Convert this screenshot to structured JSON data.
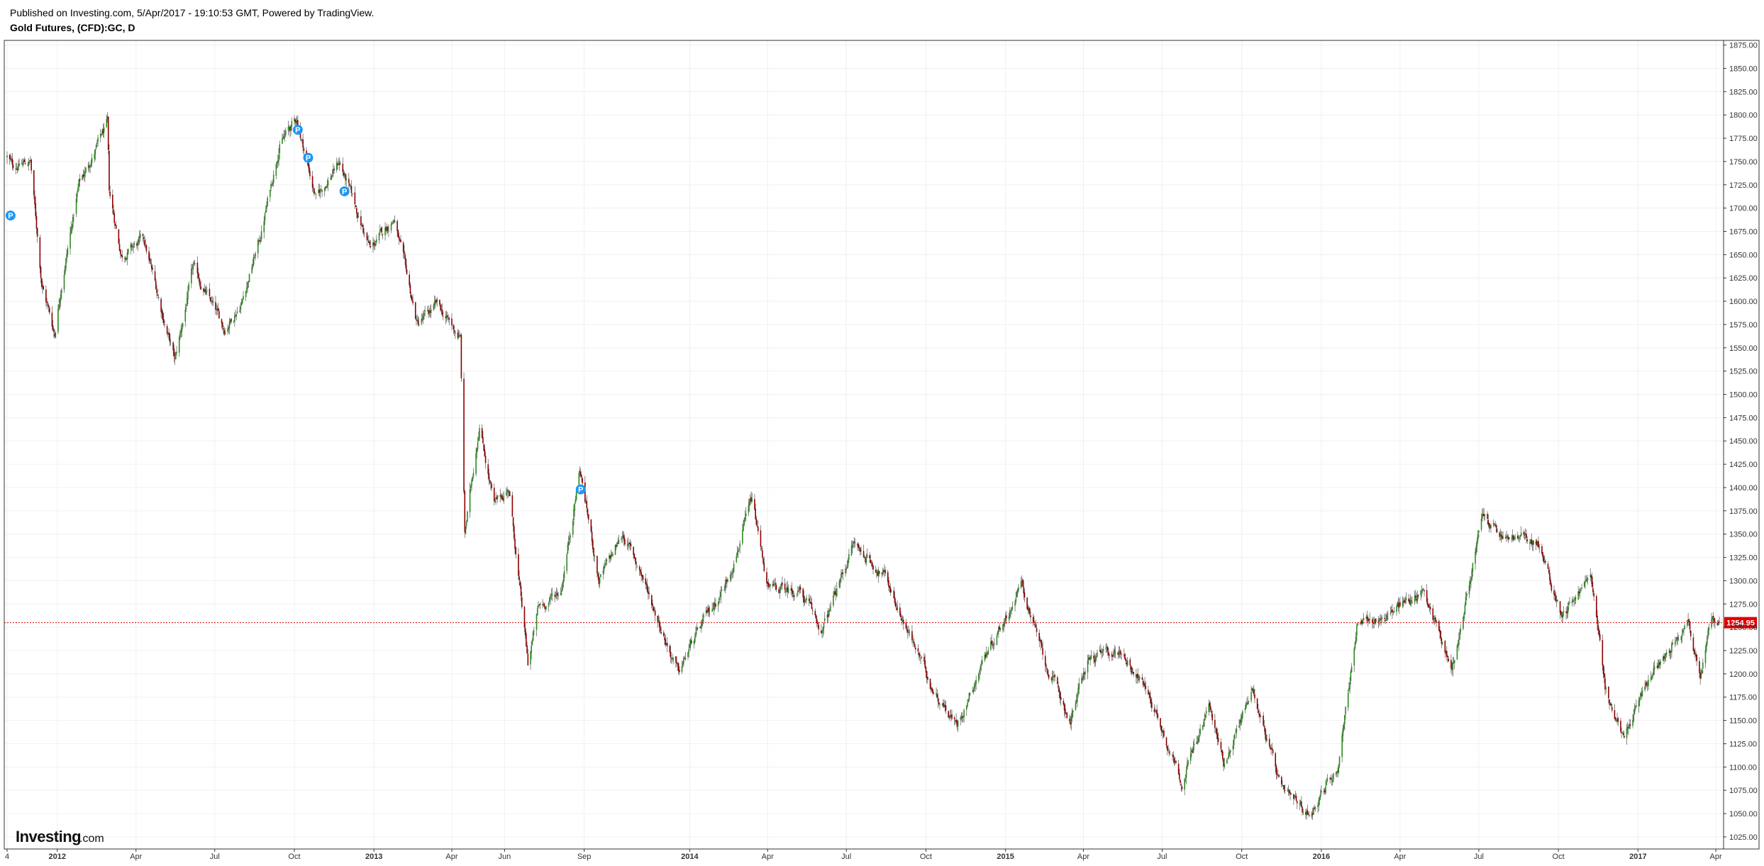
{
  "header": {
    "published_line": "Published on Investing.com, 5/Apr/2017 - 19:10:53 GMT, Powered by TradingView.",
    "symbol_title": "Gold Futures, (CFD):GC, D"
  },
  "watermark": {
    "brand_main": "Investing",
    "brand_suffix": ".com"
  },
  "colors": {
    "up": "#2b8a1e",
    "down": "#8b0000",
    "wick": "#555555",
    "grid": "#f0f0f0",
    "last_price_line": "#e00000",
    "last_price_bg": "#e00000",
    "publish_marker": "#2196f3",
    "axis": "#333333"
  },
  "chart_data": {
    "type": "candlestick",
    "title": "Gold Futures, (CFD):GC, D",
    "interval": "D",
    "xlabel": "",
    "ylabel": "",
    "ylim": [
      1012,
      1880
    ],
    "y_ticks": [
      "1025.00",
      "1050.00",
      "1075.00",
      "1100.00",
      "1125.00",
      "1150.00",
      "1175.00",
      "1200.00",
      "1225.00",
      "1250.00",
      "1275.00",
      "1300.00",
      "1325.00",
      "1350.00",
      "1375.00",
      "1400.00",
      "1425.00",
      "1450.00",
      "1475.00",
      "1500.00",
      "1525.00",
      "1550.00",
      "1575.00",
      "1600.00",
      "1625.00",
      "1650.00",
      "1675.00",
      "1700.00",
      "1725.00",
      "1750.00",
      "1775.00",
      "1800.00",
      "1825.00",
      "1850.00",
      "1875.00"
    ],
    "x_range": [
      "2011-11-04",
      "2017-04-05"
    ],
    "x_ticks": [
      {
        "label": "4",
        "date": "2011-11-04",
        "bold": false
      },
      {
        "label": "2012",
        "date": "2012-01-01",
        "bold": true
      },
      {
        "label": "Apr",
        "date": "2012-04-01",
        "bold": false
      },
      {
        "label": "Jul",
        "date": "2012-07-01",
        "bold": false
      },
      {
        "label": "Oct",
        "date": "2012-10-01",
        "bold": false
      },
      {
        "label": "2013",
        "date": "2013-01-01",
        "bold": true
      },
      {
        "label": "Apr",
        "date": "2013-04-01",
        "bold": false
      },
      {
        "label": "Jun",
        "date": "2013-06-01",
        "bold": false
      },
      {
        "label": "Sep",
        "date": "2013-09-01",
        "bold": false
      },
      {
        "label": "2014",
        "date": "2014-01-01",
        "bold": true
      },
      {
        "label": "Apr",
        "date": "2014-04-01",
        "bold": false
      },
      {
        "label": "Jul",
        "date": "2014-07-01",
        "bold": false
      },
      {
        "label": "Oct",
        "date": "2014-10-01",
        "bold": false
      },
      {
        "label": "2015",
        "date": "2015-01-01",
        "bold": true
      },
      {
        "label": "Apr",
        "date": "2015-04-01",
        "bold": false
      },
      {
        "label": "Jul",
        "date": "2015-07-01",
        "bold": false
      },
      {
        "label": "Oct",
        "date": "2015-10-01",
        "bold": false
      },
      {
        "label": "2016",
        "date": "2016-01-01",
        "bold": true
      },
      {
        "label": "Apr",
        "date": "2016-04-01",
        "bold": false
      },
      {
        "label": "Jul",
        "date": "2016-07-01",
        "bold": false
      },
      {
        "label": "Oct",
        "date": "2016-10-01",
        "bold": false
      },
      {
        "label": "2017",
        "date": "2017-01-01",
        "bold": true
      },
      {
        "label": "Apr",
        "date": "2017-04-01",
        "bold": false
      }
    ],
    "grid": true,
    "legend": "none",
    "last_price": 1254.95,
    "last_price_label": "1254.95",
    "publish_markers": [
      {
        "label": "P",
        "date": "2011-11-08",
        "price": 1692
      },
      {
        "label": "P",
        "date": "2012-10-05",
        "price": 1784
      },
      {
        "label": "P",
        "date": "2012-10-17",
        "price": 1754
      },
      {
        "label": "P",
        "date": "2012-11-28",
        "price": 1718
      },
      {
        "label": "P",
        "date": "2013-08-28",
        "price": 1398
      }
    ],
    "price_path": [
      [
        "2011-11-04",
        1755
      ],
      [
        "2011-11-10",
        1745
      ],
      [
        "2011-12-01",
        1750
      ],
      [
        "2011-12-14",
        1620
      ],
      [
        "2011-12-29",
        1565
      ],
      [
        "2012-01-05",
        1615
      ],
      [
        "2012-01-26",
        1725
      ],
      [
        "2012-02-28",
        1790
      ],
      [
        "2012-03-01",
        1715
      ],
      [
        "2012-03-15",
        1650
      ],
      [
        "2012-04-10",
        1665
      ],
      [
        "2012-05-16",
        1535
      ],
      [
        "2012-06-06",
        1635
      ],
      [
        "2012-07-12",
        1570
      ],
      [
        "2012-08-01",
        1600
      ],
      [
        "2012-08-23",
        1670
      ],
      [
        "2012-09-14",
        1770
      ],
      [
        "2012-10-04",
        1795
      ],
      [
        "2012-10-26",
        1710
      ],
      [
        "2012-11-22",
        1750
      ],
      [
        "2012-12-07",
        1710
      ],
      [
        "2012-12-28",
        1655
      ],
      [
        "2013-01-24",
        1690
      ],
      [
        "2013-02-20",
        1575
      ],
      [
        "2013-03-15",
        1595
      ],
      [
        "2013-04-11",
        1560
      ],
      [
        "2013-04-16",
        1350
      ],
      [
        "2013-05-03",
        1470
      ],
      [
        "2013-05-20",
        1380
      ],
      [
        "2013-06-06",
        1400
      ],
      [
        "2013-06-28",
        1210
      ],
      [
        "2013-07-10",
        1270
      ],
      [
        "2013-08-05",
        1290
      ],
      [
        "2013-08-27",
        1420
      ],
      [
        "2013-09-18",
        1300
      ],
      [
        "2013-10-16",
        1350
      ],
      [
        "2013-11-05",
        1310
      ],
      [
        "2013-12-19",
        1200
      ],
      [
        "2014-01-02",
        1230
      ],
      [
        "2014-02-13",
        1300
      ],
      [
        "2014-03-14",
        1385
      ],
      [
        "2014-04-02",
        1290
      ],
      [
        "2014-05-08",
        1290
      ],
      [
        "2014-06-03",
        1245
      ],
      [
        "2014-07-09",
        1340
      ],
      [
        "2014-08-15",
        1305
      ],
      [
        "2014-09-15",
        1235
      ],
      [
        "2014-10-06",
        1190
      ],
      [
        "2014-11-06",
        1145
      ],
      [
        "2014-12-08",
        1220
      ],
      [
        "2015-01-20",
        1295
      ],
      [
        "2015-02-16",
        1210
      ],
      [
        "2015-03-17",
        1150
      ],
      [
        "2015-04-06",
        1215
      ],
      [
        "2015-05-15",
        1225
      ],
      [
        "2015-06-15",
        1180
      ],
      [
        "2015-07-24",
        1085
      ],
      [
        "2015-08-24",
        1165
      ],
      [
        "2015-09-10",
        1105
      ],
      [
        "2015-10-14",
        1185
      ],
      [
        "2015-11-17",
        1070
      ],
      [
        "2015-12-17",
        1050
      ],
      [
        "2016-01-20",
        1100
      ],
      [
        "2016-02-11",
        1250
      ],
      [
        "2016-03-10",
        1260
      ],
      [
        "2016-04-29",
        1290
      ],
      [
        "2016-05-31",
        1205
      ],
      [
        "2016-07-06",
        1370
      ],
      [
        "2016-07-28",
        1345
      ],
      [
        "2016-08-18",
        1345
      ],
      [
        "2016-09-07",
        1340
      ],
      [
        "2016-10-04",
        1265
      ],
      [
        "2016-11-08",
        1305
      ],
      [
        "2016-11-24",
        1185
      ],
      [
        "2016-12-15",
        1130
      ],
      [
        "2017-01-16",
        1200
      ],
      [
        "2017-02-27",
        1260
      ],
      [
        "2017-03-14",
        1200
      ],
      [
        "2017-03-27",
        1255
      ],
      [
        "2017-04-05",
        1254.95
      ]
    ]
  }
}
